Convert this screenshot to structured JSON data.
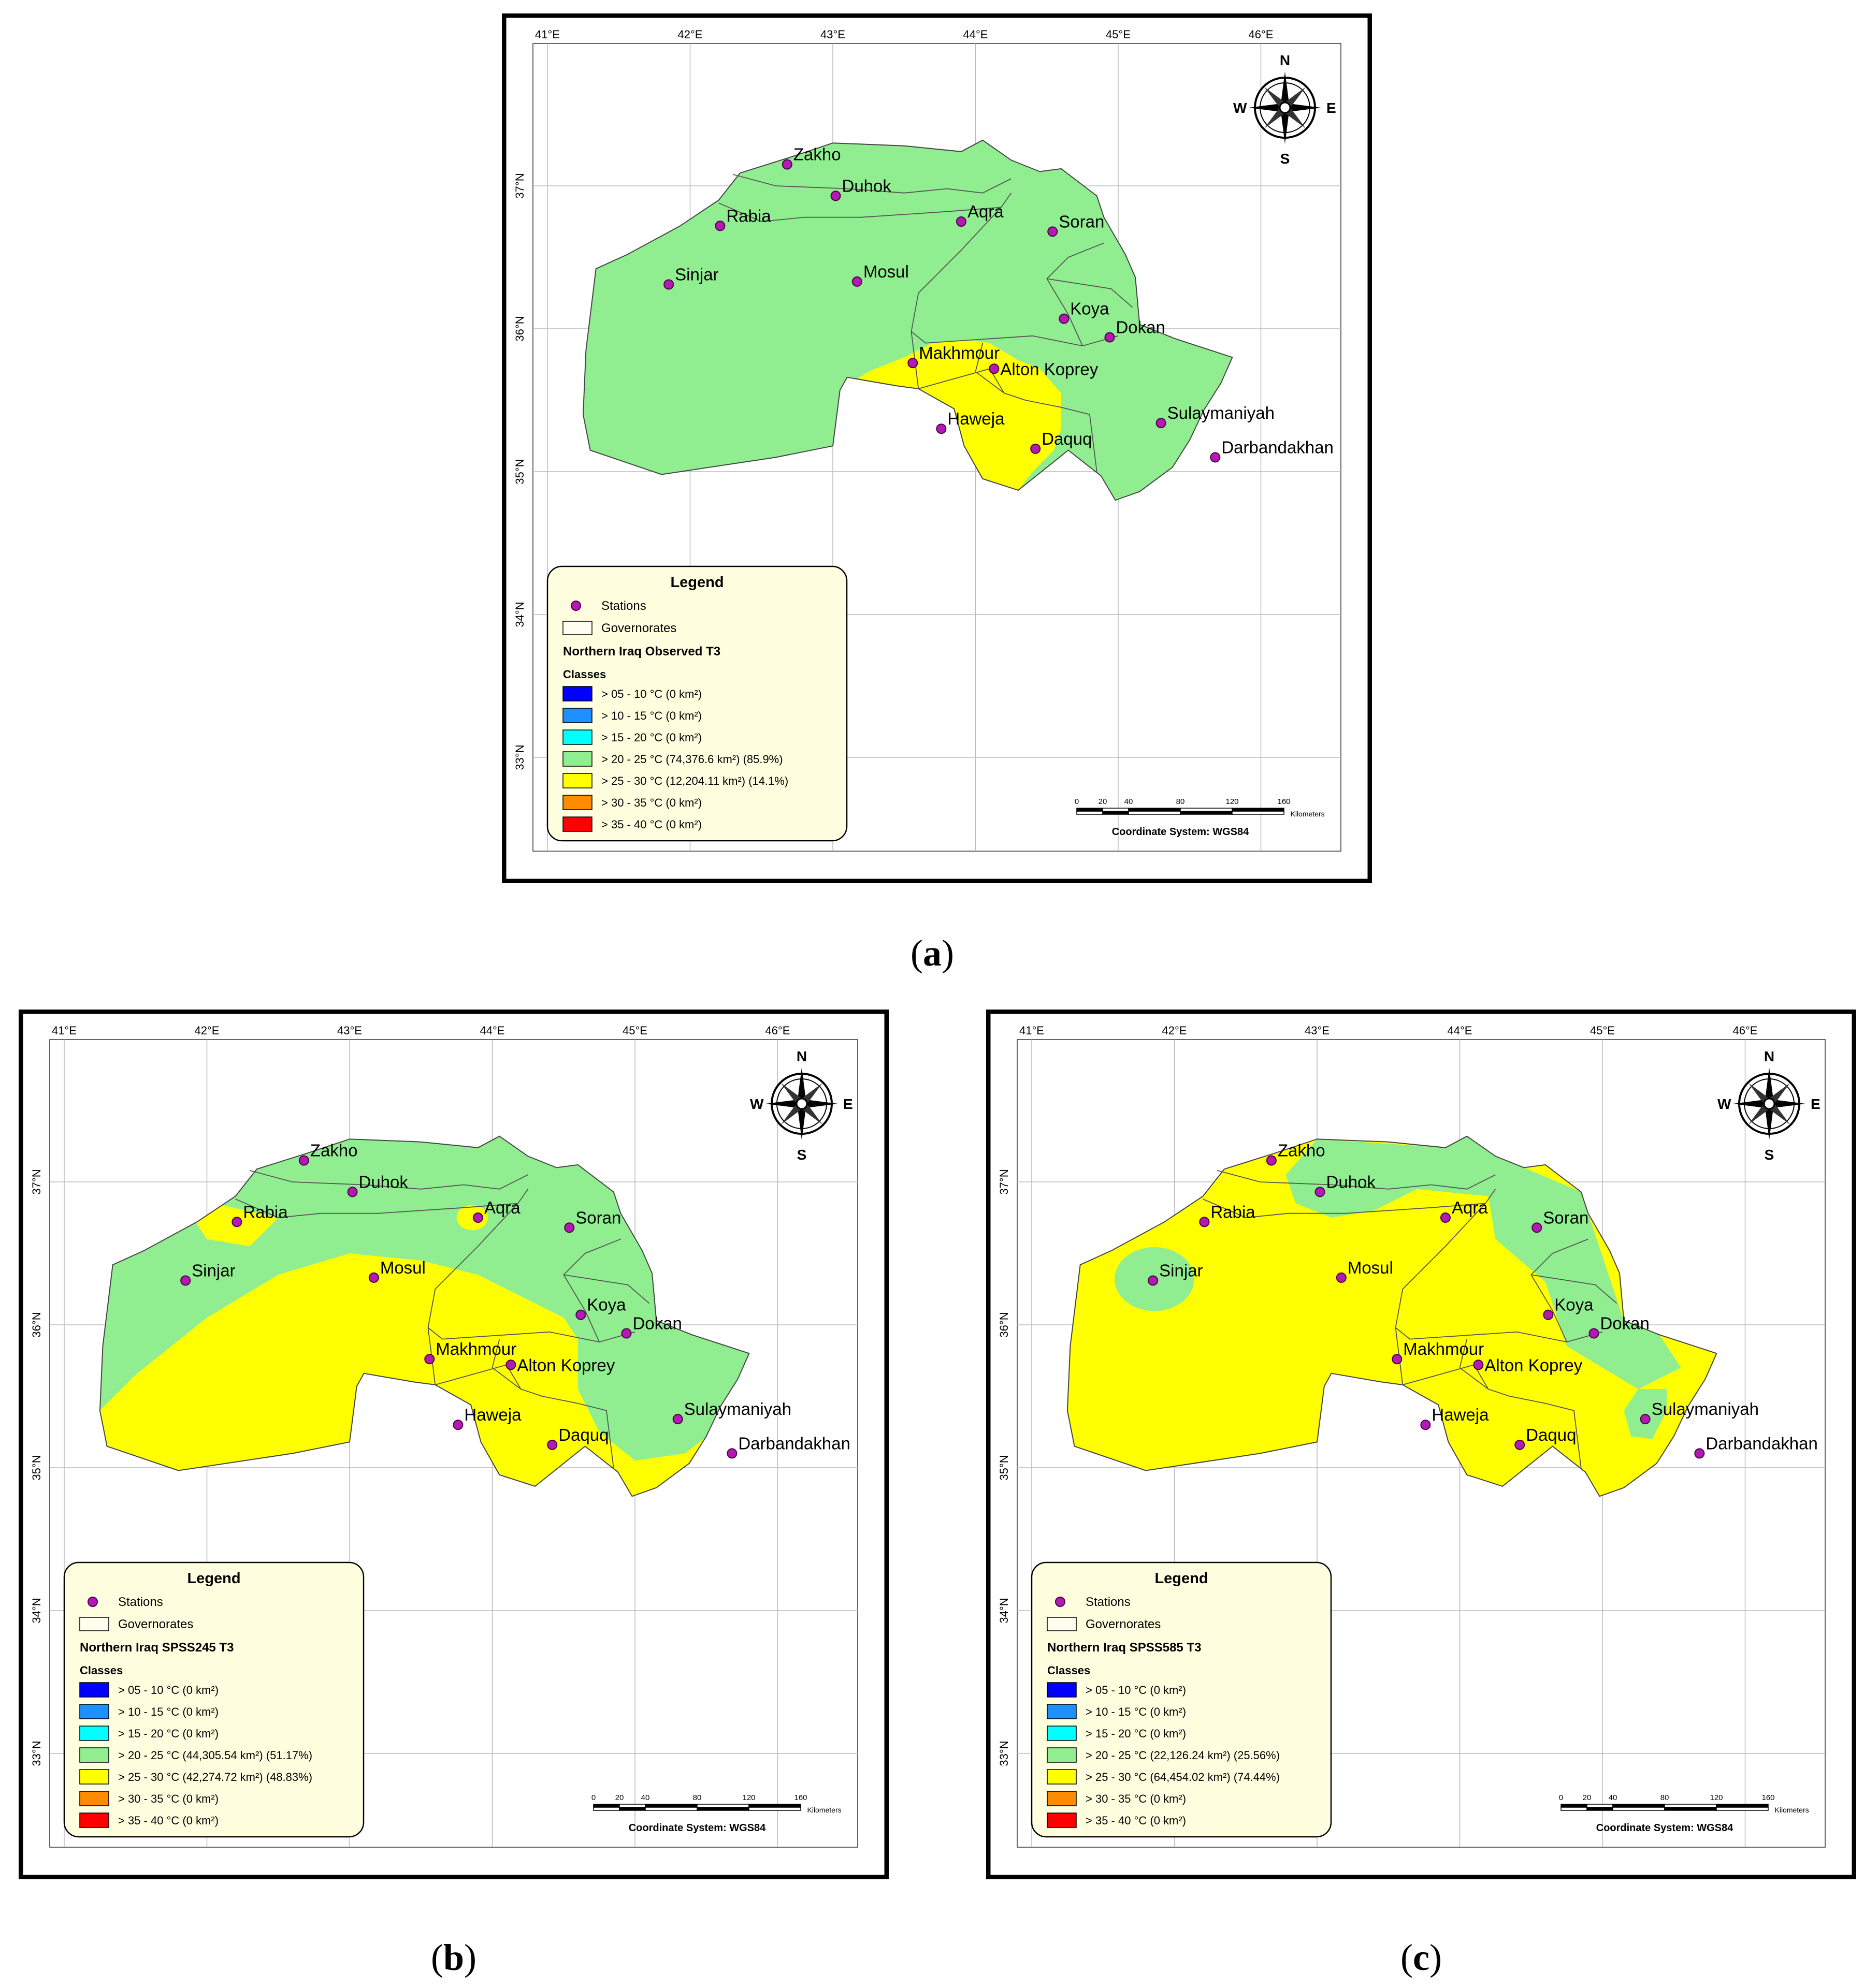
{
  "axes": {
    "longitudes": [
      "41°E",
      "42°E",
      "43°E",
      "44°E",
      "45°E",
      "46°E"
    ],
    "latitudes": [
      "37°N",
      "36°N",
      "35°N",
      "34°N",
      "33°N"
    ]
  },
  "compass": {
    "n": "N",
    "s": "S",
    "e": "E",
    "w": "W"
  },
  "scale": {
    "ticks": [
      "0",
      "20",
      "40",
      "80",
      "120",
      "160"
    ],
    "unit": "Kilometers",
    "coordinate_system": "Coordinate System: WGS84"
  },
  "stations": [
    "Zakho",
    "Duhok",
    "Rabia",
    "Aqra",
    "Soran",
    "Sinjar",
    "Mosul",
    "Koya",
    "Dokan",
    "Makhmour",
    "Alton Koprey",
    "Haweja",
    "Daquq",
    "Sulaymaniyah",
    "Darbandakhan"
  ],
  "legend": {
    "title": "Legend",
    "stations_label": "Stations",
    "governorates_label": "Governorates",
    "classes_label": "Classes",
    "colors": [
      "#0000ff",
      "#1e90ff",
      "#00ffff",
      "#90ee90",
      "#ffff00",
      "#ff8c00",
      "#ff0000"
    ]
  },
  "panels": [
    {
      "caption_letter": "a",
      "legend_subtitle": "Northern Iraq Observed T3",
      "classes": [
        "> 05 - 10 °C (0 km²)",
        "> 10 - 15 °C (0 km²)",
        "> 15 - 20 °C (0 km²)",
        "> 20 - 25 °C (74,376.6 km²) (85.9%)",
        "> 25 - 30 °C (12,204.11 km²) (14.1%)",
        "> 30 - 35 °C (0 km²)",
        "> 35 - 40 °C (0 km²)"
      ]
    },
    {
      "caption_letter": "b",
      "legend_subtitle": "Northern Iraq SPSS245 T3",
      "classes": [
        "> 05 - 10 °C (0 km²)",
        "> 10 - 15 °C (0 km²)",
        "> 15 - 20 °C (0 km²)",
        "> 20 - 25 °C (44,305.54 km²) (51.17%)",
        "> 25 - 30 °C (42,274.72 km²) (48.83%)",
        "> 30 - 35 °C (0 km²)",
        "> 35 - 40 °C (0 km²)"
      ]
    },
    {
      "caption_letter": "c",
      "legend_subtitle": "Northern Iraq SPSS585 T3",
      "classes": [
        "> 05 - 10 °C (0 km²)",
        "> 10 - 15 °C (0 km²)",
        "> 15 - 20 °C (0 km²)",
        "> 20 - 25 °C (22,126.24 km²) (25.56%)",
        "> 25 - 30 °C (64,454.02 km²) (74.44%)",
        "> 30 - 35 °C (0 km²)",
        "> 35 - 40 °C (0 km²)"
      ]
    }
  ]
}
